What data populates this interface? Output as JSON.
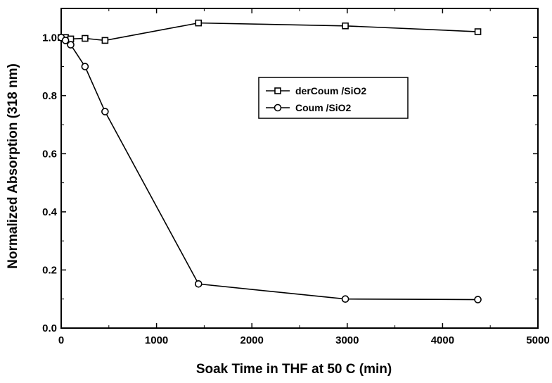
{
  "chart_data": {
    "type": "line",
    "title": "",
    "xlabel": "Soak Time in THF at 50 C (min)",
    "ylabel": "Normalized Absorption (318 nm)",
    "xlim": [
      0,
      5000
    ],
    "ylim": [
      0,
      1.1
    ],
    "x_ticks": [
      0,
      1000,
      2000,
      3000,
      4000,
      5000
    ],
    "y_ticks": [
      0.0,
      0.2,
      0.4,
      0.6,
      0.8,
      1.0
    ],
    "x_tick_labels": [
      "0",
      "1000",
      "2000",
      "3000",
      "4000",
      "5000"
    ],
    "y_tick_labels": [
      "0.0",
      "0.2",
      "0.4",
      "0.6",
      "0.8",
      "1.0"
    ],
    "grid": false,
    "legend_position": "upper-middle-right",
    "series": [
      {
        "name": "derCoum /SiO2",
        "marker": "square",
        "x": [
          0,
          45,
          100,
          250,
          460,
          1440,
          2980,
          4370
        ],
        "y": [
          1.0,
          1.0,
          0.995,
          0.997,
          0.99,
          1.05,
          1.04,
          1.02
        ]
      },
      {
        "name": "Coum /SiO2",
        "marker": "circle",
        "x": [
          0,
          45,
          100,
          250,
          460,
          1440,
          2980,
          4370
        ],
        "y": [
          1.0,
          0.99,
          0.975,
          0.9,
          0.745,
          0.152,
          0.1,
          0.098
        ]
      }
    ]
  }
}
